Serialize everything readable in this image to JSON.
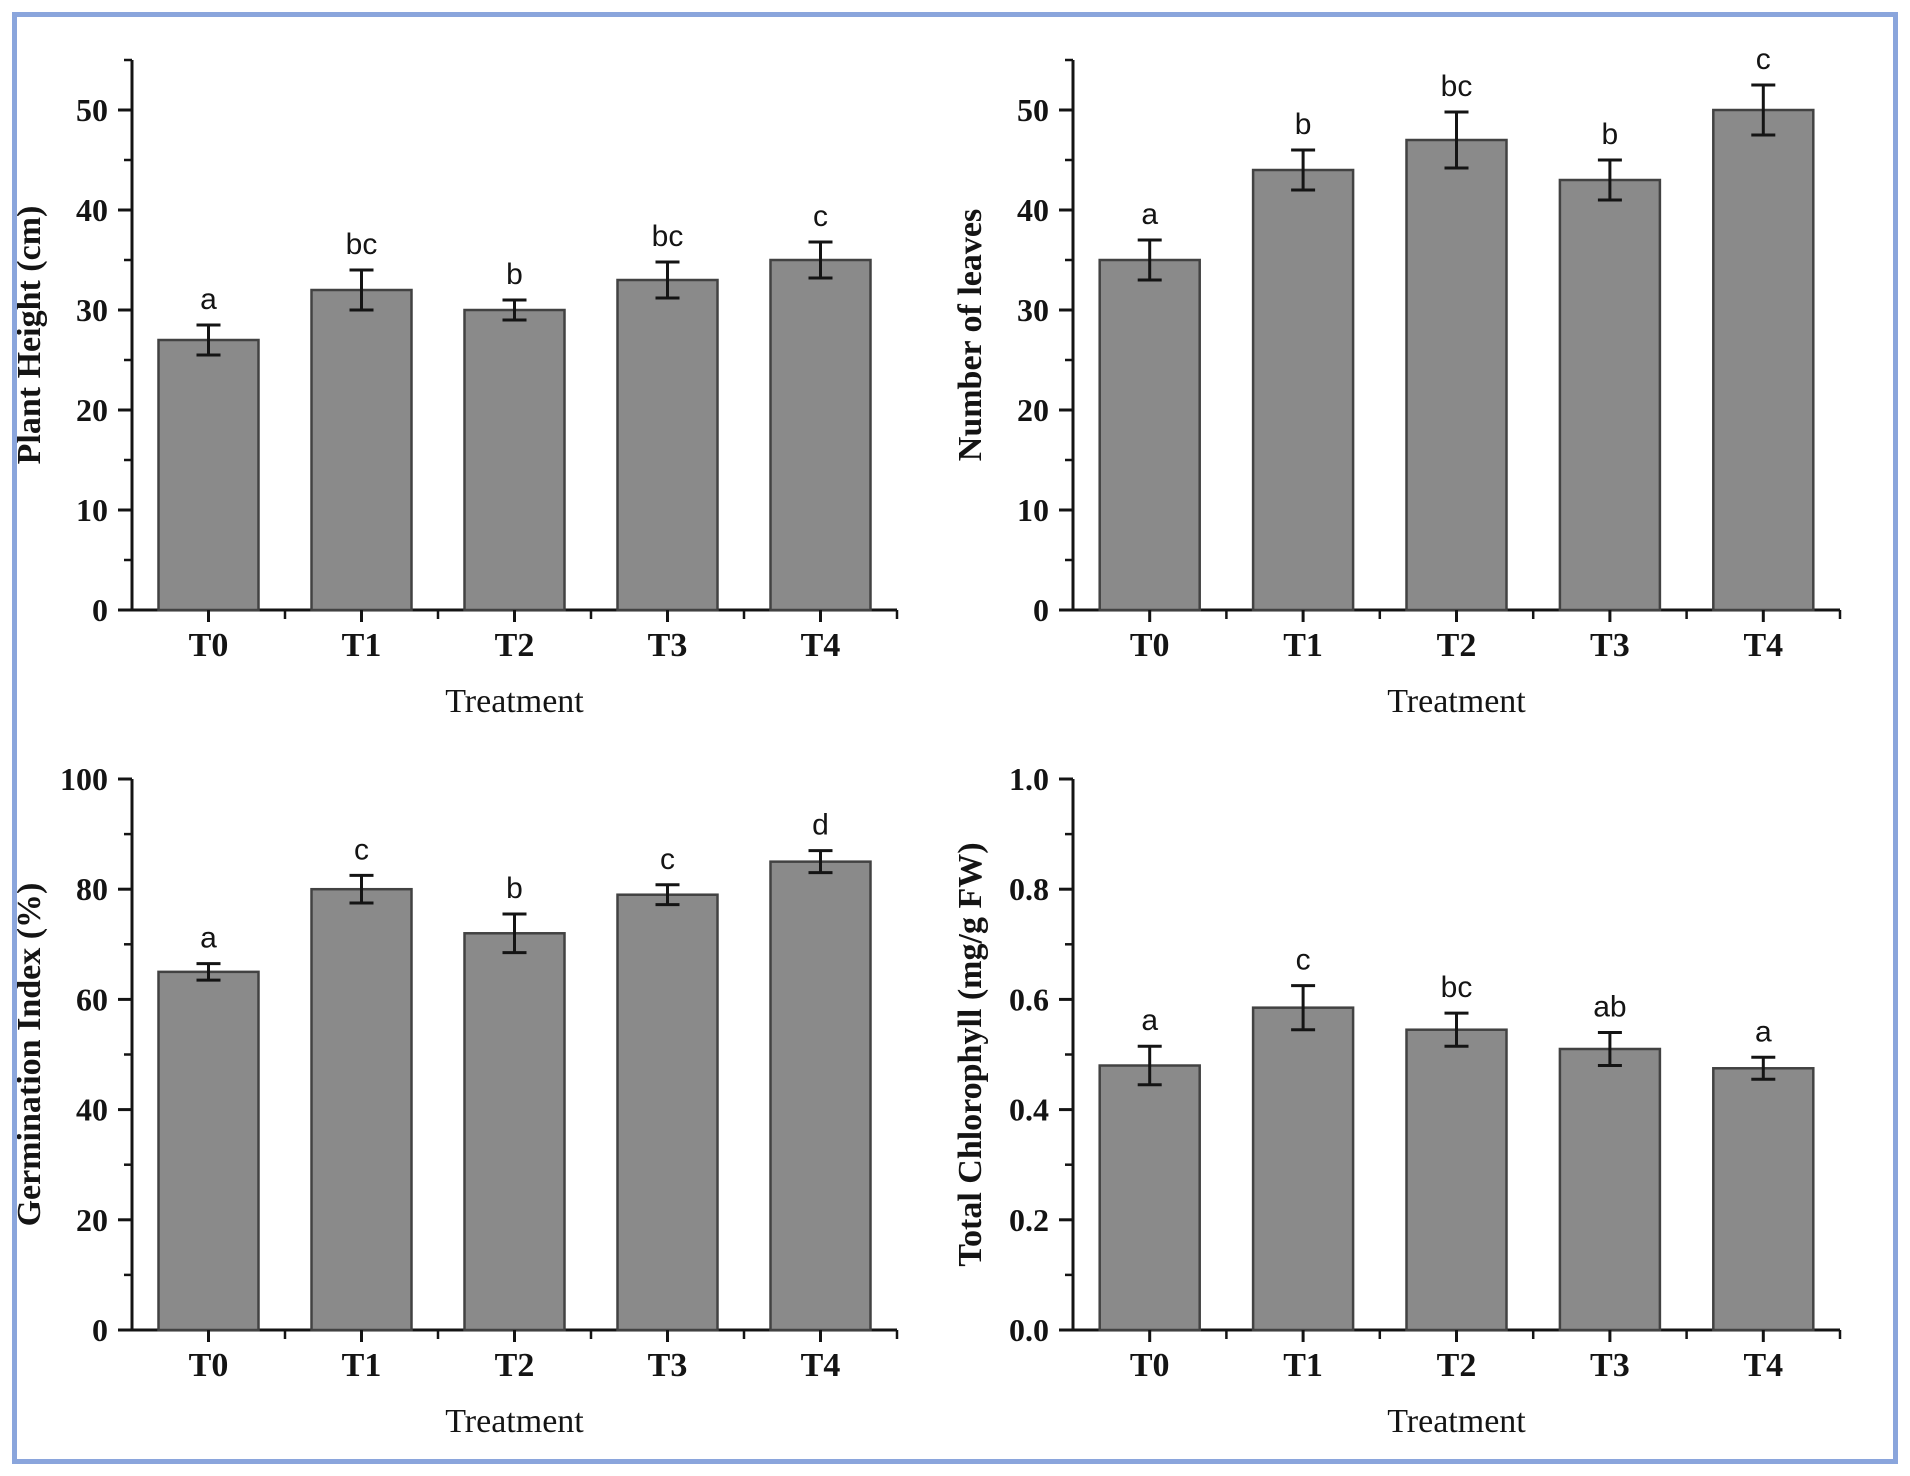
{
  "figure": {
    "background": "#ffffff",
    "border_color": "#8aa5dc",
    "bar_fill": "#8a8a8a",
    "bar_stroke": "#424242",
    "axis_color": "#141414",
    "letter_color": "#1a1a1a"
  },
  "chart_data": [
    {
      "type": "bar",
      "position": "top-left",
      "ylabel": "Plant Height (cm)",
      "xlabel": "Treatment",
      "categories": [
        "T0",
        "T1",
        "T2",
        "T3",
        "T4"
      ],
      "values": [
        27,
        32,
        30,
        33,
        35
      ],
      "errors": [
        1.5,
        2,
        1,
        1.8,
        1.8
      ],
      "sig_letters": [
        "a",
        "bc",
        "b",
        "bc",
        "c"
      ],
      "ylim": [
        0,
        55
      ],
      "ytick_values": [
        0,
        10,
        20,
        30,
        40,
        50
      ],
      "ytick_labels": [
        "0",
        "10",
        "20",
        "30",
        "40",
        "50"
      ],
      "minor_tick_values": [
        5,
        15,
        25,
        35,
        45,
        55
      ],
      "grid": "off",
      "legend": "none"
    },
    {
      "type": "bar",
      "position": "top-right",
      "ylabel": "Number of leaves",
      "xlabel": "Treatment",
      "categories": [
        "T0",
        "T1",
        "T2",
        "T3",
        "T4"
      ],
      "values": [
        35,
        44,
        47,
        43,
        50
      ],
      "errors": [
        2,
        2,
        2.8,
        2,
        2.5
      ],
      "sig_letters": [
        "a",
        "b",
        "bc",
        "b",
        "c"
      ],
      "ylim": [
        0,
        55
      ],
      "ytick_values": [
        0,
        10,
        20,
        30,
        40,
        50
      ],
      "ytick_labels": [
        "0",
        "10",
        "20",
        "30",
        "40",
        "50"
      ],
      "minor_tick_values": [
        5,
        15,
        25,
        35,
        45,
        55
      ],
      "grid": "off",
      "legend": "none"
    },
    {
      "type": "bar",
      "position": "bottom-left",
      "ylabel": "Germination Index (%)",
      "xlabel": "Treatment",
      "categories": [
        "T0",
        "T1",
        "T2",
        "T3",
        "T4"
      ],
      "values": [
        65,
        80,
        72,
        79,
        85
      ],
      "errors": [
        1.5,
        2.5,
        3.5,
        1.8,
        2
      ],
      "sig_letters": [
        "a",
        "c",
        "b",
        "c",
        "d"
      ],
      "ylim": [
        0,
        100
      ],
      "ytick_values": [
        0,
        20,
        40,
        60,
        80,
        100
      ],
      "ytick_labels": [
        "0",
        "20",
        "40",
        "60",
        "80",
        "100"
      ],
      "minor_tick_values": [
        10,
        30,
        50,
        70,
        90
      ],
      "grid": "off",
      "legend": "none"
    },
    {
      "type": "bar",
      "position": "bottom-right",
      "ylabel": "Total Chlorophyll (mg/g FW)",
      "xlabel": "Treatment",
      "categories": [
        "T0",
        "T1",
        "T2",
        "T3",
        "T4"
      ],
      "values": [
        0.48,
        0.585,
        0.545,
        0.51,
        0.475
      ],
      "errors": [
        0.035,
        0.04,
        0.03,
        0.03,
        0.02
      ],
      "sig_letters": [
        "a",
        "c",
        "bc",
        "ab",
        "a"
      ],
      "ylim": [
        0,
        1.0
      ],
      "ytick_values": [
        0,
        0.2,
        0.4,
        0.6,
        0.8,
        1.0
      ],
      "ytick_labels": [
        "0.0",
        "0.2",
        "0.4",
        "0.6",
        "0.8",
        "1.0"
      ],
      "minor_tick_values": [
        0.1,
        0.3,
        0.5,
        0.7,
        0.9
      ],
      "grid": "off",
      "legend": "none"
    }
  ]
}
